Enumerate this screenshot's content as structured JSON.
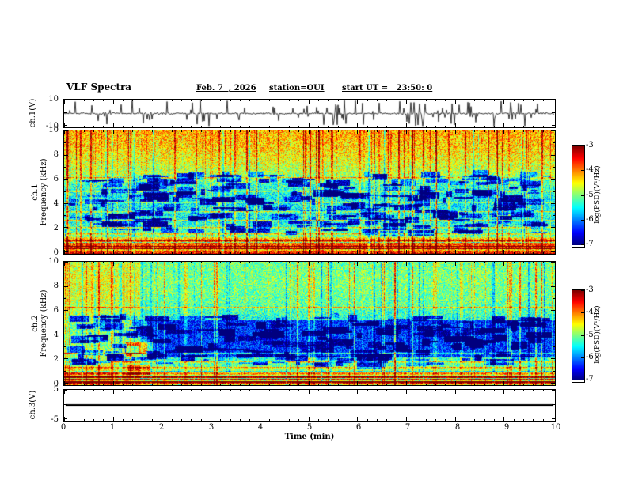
{
  "title": "VLF Spectra",
  "header": {
    "date": "Feb. 7  , 2026",
    "station": "station=OUI",
    "start_ut": "start UT =   23:50: 0"
  },
  "x_axis": {
    "label": "Time (min)",
    "ticks": [
      "0",
      "1",
      "2",
      "3",
      "4",
      "5",
      "6",
      "7",
      "8",
      "9",
      "10"
    ],
    "range": [
      0,
      10
    ]
  },
  "panels": {
    "ch1_wave": {
      "ylabel": "ch.1(V)",
      "yticks": [
        10,
        -10
      ],
      "ylim": [
        -10,
        10
      ]
    },
    "spec1": {
      "ylabel_line1": "ch.1",
      "ylabel_line2": "Frequency (kHz)",
      "yticks": [
        10,
        8,
        6,
        4,
        2,
        0
      ],
      "ylim": [
        0,
        10
      ]
    },
    "spec2": {
      "ylabel_line1": "ch.2",
      "ylabel_line2": "Frequency (kHz)",
      "yticks": [
        10,
        8,
        6,
        4,
        2,
        0
      ],
      "ylim": [
        0,
        10
      ]
    },
    "ch3_wave": {
      "ylabel": "ch.3(V)",
      "yticks": [
        5,
        -5
      ],
      "ylim": [
        -5,
        5
      ]
    }
  },
  "colorbars": [
    {
      "label": "log(PSD)(V²/Hz)",
      "ticks": [
        "-3",
        "-4",
        "-5",
        "-6",
        "-7"
      ],
      "range": [
        -7,
        -3
      ]
    },
    {
      "label": "log(PSD)(V²/Hz)",
      "ticks": [
        "-3",
        "-4",
        "-5",
        "-6",
        "-7"
      ],
      "range": [
        -7,
        -3
      ]
    }
  ],
  "chart_data": [
    {
      "type": "line",
      "name": "ch1_waveform",
      "panel": "ch1",
      "ylabel": "ch.1(V)",
      "ylim": [
        -10,
        10
      ],
      "xlim": [
        0,
        10
      ],
      "description": "Broadband VLF channel 1 time series: baseline near 0 V with dense impulsive sferic spikes reaching +/-10 V throughout the 10 minute record",
      "seed": 7,
      "noise_amp": 0.7,
      "spike_count": 110
    },
    {
      "type": "heatmap",
      "name": "ch1_spectrogram",
      "panel": "spec1",
      "ylabel": "ch.1 Frequency (kHz)",
      "ylim": [
        0,
        10
      ],
      "xlim": [
        0,
        10
      ],
      "zlabel": "log(PSD)(V²/Hz)",
      "zlim": [
        -7,
        -3
      ],
      "colormap": "jet",
      "description": "Spectrogram of ch.1: intense yellow/orange/red band above ~7 kHz with frequent red vertical sferic streaks, mottled green/cyan 2-7 kHz with dark-blue low-power patches, dense striped high-power band below ~1.3 kHz, thin horizontal power-line harmonics",
      "seed": 11,
      "noise": 0.3,
      "base_profile": [
        [
          0,
          0.8
        ],
        [
          0.05,
          0.78
        ],
        [
          0.1,
          0.62
        ],
        [
          0.13,
          0.5
        ],
        [
          0.2,
          0.42
        ],
        [
          0.3,
          0.38
        ],
        [
          0.45,
          0.37
        ],
        [
          0.55,
          0.42
        ],
        [
          0.65,
          0.55
        ],
        [
          0.75,
          0.6
        ],
        [
          0.85,
          0.66
        ],
        [
          1,
          0.7
        ]
      ],
      "vstreaks": {
        "count": 150,
        "bright": 0.32,
        "dark": 0.22
      },
      "hline_freqs": [
        1.6,
        2.1,
        2.7,
        3.4,
        4.2,
        5.1,
        6.2
      ],
      "hline_strength": 0.2,
      "dense_band": {
        "fmax": 1.3,
        "strength": 0.33
      },
      "dark_patches": {
        "count": 260,
        "fmin": 1.6,
        "fmax": 6.5,
        "strength": 0.34
      }
    },
    {
      "type": "heatmap",
      "name": "ch2_spectrogram",
      "panel": "spec2",
      "ylabel": "ch.2 Frequency (kHz)",
      "ylim": [
        0,
        10
      ],
      "xlim": [
        0,
        10
      ],
      "zlabel": "log(PSD)(V²/Hz)",
      "zlim": [
        -7,
        -3
      ],
      "colormap": "jet",
      "description": "Spectrogram of ch.2: overall green/cyan, brighter vertical banding before ~1.6 min, broad dark-blue low-power block ~2-5 kHz after ~1.7 min, bright yellow patch near 1.3-1.8 min at 1-3.5 kHz, dense striped band below ~1.1 kHz, horizontal lines near 1.9 and 6.3 kHz",
      "seed": 23,
      "noise": 0.28,
      "base_profile": [
        [
          0,
          0.78
        ],
        [
          0.05,
          0.7
        ],
        [
          0.1,
          0.55
        ],
        [
          0.15,
          0.48
        ],
        [
          0.22,
          0.42
        ],
        [
          0.3,
          0.4
        ],
        [
          0.5,
          0.38
        ],
        [
          0.6,
          0.44
        ],
        [
          0.7,
          0.48
        ],
        [
          0.85,
          0.5
        ],
        [
          1,
          0.48
        ]
      ],
      "vstreaks": {
        "count": 120,
        "bright": 0.28,
        "dark": 0.2
      },
      "hline_freqs": [
        0.9,
        1.4,
        1.9,
        2.6,
        6.3
      ],
      "hline_strength": 0.22,
      "dense_band": {
        "fmax": 1.1,
        "strength": 0.3
      },
      "dark_patches": {
        "count": 210,
        "fmin": 1.6,
        "fmax": 5.6,
        "strength": 0.3
      },
      "dark_block": {
        "t0": 1.7,
        "t1": 10,
        "f0": 2.2,
        "f1": 5.2,
        "strength": 0.22
      },
      "bright_region": {
        "t0": 0,
        "t1": 1.55,
        "boost": 0.11
      },
      "bright_blocks": [
        {
          "t0": 1.25,
          "t1": 1.8,
          "f0": 2.2,
          "f1": 3.4,
          "strength": 0.28
        },
        {
          "t0": 1.3,
          "t1": 1.75,
          "f0": 0.8,
          "f1": 1.6,
          "strength": 0.22
        }
      ]
    },
    {
      "type": "line",
      "name": "ch3_waveform",
      "panel": "ch3",
      "ylabel": "ch.3(V)",
      "ylim": [
        -5,
        5
      ],
      "xlim": [
        0,
        10
      ],
      "description": "Channel 3 is flat: constant 0 V thick line across the full record",
      "values_constant": 0,
      "line_width": 3
    }
  ]
}
